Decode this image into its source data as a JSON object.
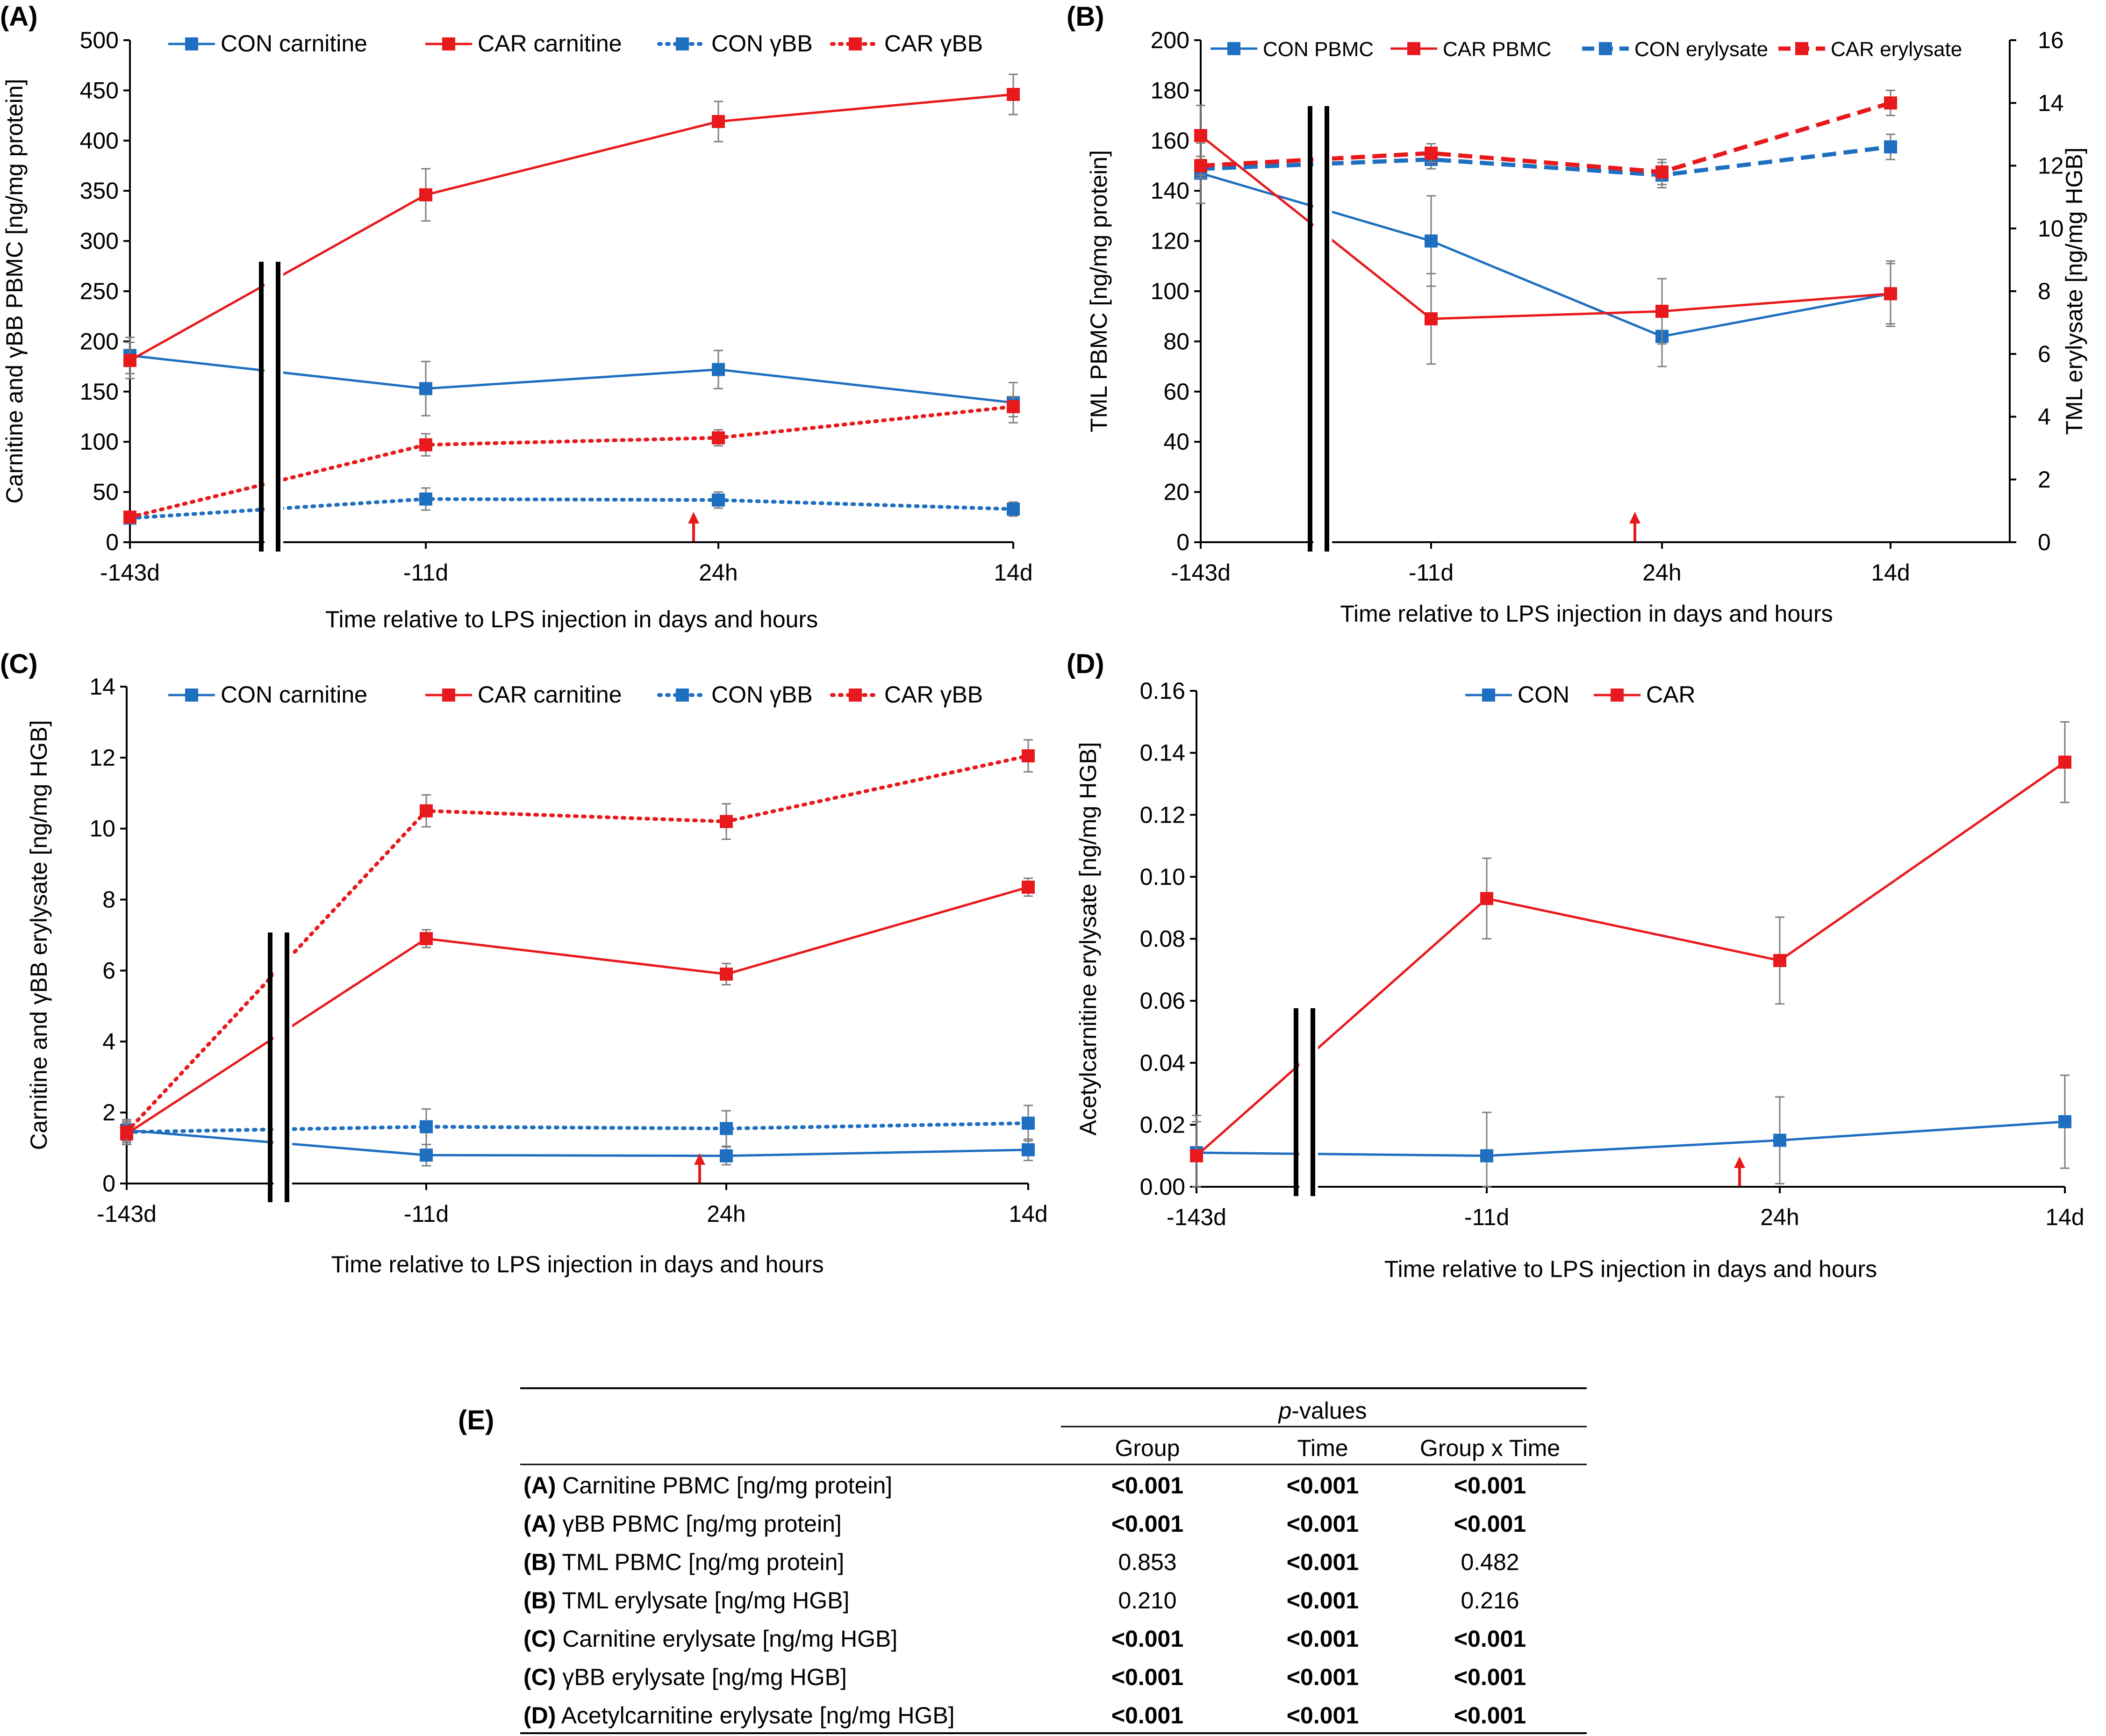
{
  "colors": {
    "con": "#1f6fc0",
    "car": "#e8191c",
    "axis": "#000000",
    "errbar": "#7f7f7f",
    "arrow": "#e8191c"
  },
  "chart_data": [
    {
      "id": "A",
      "panel_label": "(A)",
      "type": "line",
      "categories": [
        "-143d",
        "-11d",
        "24h",
        "14d"
      ],
      "break_between": [
        0,
        1
      ],
      "xlabel": "Time relative to LPS injection in days and hours",
      "ylabel": "Carnitine and γBB PBMC [ng/mg protein]",
      "ylim": [
        0,
        500
      ],
      "yticks": [
        "0",
        "50",
        "100",
        "150",
        "200",
        "250",
        "300",
        "350",
        "400",
        "450",
        "500"
      ],
      "legend": "top",
      "lps_arrow_category": 2,
      "series": [
        {
          "name": "CON carnitine",
          "group": "con",
          "style": "solid",
          "values": [
            186,
            153,
            172,
            139
          ],
          "errors": [
            18,
            27,
            19,
            20
          ]
        },
        {
          "name": "CAR carnitine",
          "group": "car",
          "style": "solid",
          "values": [
            181,
            346,
            419,
            446
          ],
          "errors": [
            18,
            26,
            20,
            20
          ]
        },
        {
          "name": "CON γBB",
          "group": "con",
          "style": "dotted",
          "values": [
            24,
            43,
            42,
            33
          ],
          "errors": [
            5,
            11,
            8,
            7
          ]
        },
        {
          "name": "CAR γBB",
          "group": "car",
          "style": "dotted",
          "values": [
            25,
            97,
            104,
            135
          ],
          "errors": [
            4,
            11,
            8,
            10
          ]
        }
      ]
    },
    {
      "id": "B",
      "panel_label": "(B)",
      "type": "line",
      "categories": [
        "-143d",
        "-11d",
        "24h",
        "14d"
      ],
      "break_between": [
        0,
        1
      ],
      "xlabel": "Time relative to LPS injection in days and hours",
      "ylabel": "TML PBMC [ng/mg protein]",
      "ylabel_right": "TML erylysate [ng/mg HGB]",
      "ylim": [
        0,
        200
      ],
      "yticks": [
        "0",
        "20",
        "40",
        "60",
        "80",
        "100",
        "120",
        "140",
        "160",
        "180",
        "200"
      ],
      "ylim_right": [
        0,
        16
      ],
      "yticks_right": [
        "0",
        "2",
        "4",
        "6",
        "8",
        "10",
        "12",
        "14",
        "16"
      ],
      "legend": "top",
      "lps_arrow_category": 2,
      "series": [
        {
          "name": "CON PBMC",
          "group": "con",
          "style": "solid",
          "axis": "left",
          "values": [
            147,
            120,
            82,
            99
          ],
          "errors": [
            12,
            18,
            12,
            13
          ]
        },
        {
          "name": "CAR PBMC",
          "group": "car",
          "style": "solid",
          "axis": "left",
          "values": [
            162,
            89,
            92,
            99
          ],
          "errors": [
            12,
            18,
            13,
            12
          ]
        },
        {
          "name": "CON erylysate",
          "group": "con",
          "style": "dashed",
          "axis": "right",
          "values": [
            11.9,
            12.2,
            11.7,
            12.6
          ],
          "errors": [
            0.3,
            0.3,
            0.4,
            0.4
          ]
        },
        {
          "name": "CAR erylysate",
          "group": "car",
          "style": "dashed",
          "axis": "right",
          "values": [
            12.0,
            12.4,
            11.8,
            14.0
          ],
          "errors": [
            0.3,
            0.3,
            0.4,
            0.4
          ]
        }
      ]
    },
    {
      "id": "C",
      "panel_label": "(C)",
      "type": "line",
      "categories": [
        "-143d",
        "-11d",
        "24h",
        "14d"
      ],
      "break_between": [
        0,
        1
      ],
      "xlabel": "Time relative to LPS injection in days and hours",
      "ylabel": "Carnitine and γBB erylysate [ng/mg HGB]",
      "ylim": [
        0,
        14
      ],
      "yticks": [
        "0",
        "2",
        "4",
        "6",
        "8",
        "10",
        "12",
        "14"
      ],
      "legend": "top",
      "lps_arrow_category": 2,
      "series": [
        {
          "name": "CON carnitine",
          "group": "con",
          "style": "solid",
          "values": [
            1.5,
            0.8,
            0.78,
            0.95
          ],
          "errors": [
            0.3,
            0.3,
            0.25,
            0.3
          ]
        },
        {
          "name": "CAR carnitine",
          "group": "car",
          "style": "solid",
          "values": [
            1.4,
            6.9,
            5.9,
            8.35
          ],
          "errors": [
            0.3,
            0.25,
            0.3,
            0.25
          ]
        },
        {
          "name": "CON γBB",
          "group": "con",
          "style": "dotted",
          "values": [
            1.45,
            1.6,
            1.55,
            1.7
          ],
          "errors": [
            0.3,
            0.5,
            0.5,
            0.5
          ]
        },
        {
          "name": "CAR γBB",
          "group": "car",
          "style": "dotted",
          "values": [
            1.45,
            10.5,
            10.2,
            12.05
          ],
          "errors": [
            0.3,
            0.45,
            0.5,
            0.45
          ]
        }
      ]
    },
    {
      "id": "D",
      "panel_label": "(D)",
      "type": "line",
      "categories": [
        "-143d",
        "-11d",
        "24h",
        "14d"
      ],
      "break_between": [
        0,
        1
      ],
      "xlabel": "Time relative to LPS injection in days and hours",
      "ylabel": "Acetylcarnitine erylysate [ng/mg HGB]",
      "ylim": [
        0,
        0.16
      ],
      "yticks": [
        "0.00",
        "0.02",
        "0.04",
        "0.06",
        "0.08",
        "0.10",
        "0.12",
        "0.14",
        "0.16"
      ],
      "legend": "top",
      "lps_arrow_category": 2,
      "series": [
        {
          "name": "CON",
          "group": "con",
          "style": "solid",
          "values": [
            0.011,
            0.01,
            0.015,
            0.021
          ],
          "errors": [
            0.012,
            0.014,
            0.014,
            0.015
          ]
        },
        {
          "name": "CAR",
          "group": "car",
          "style": "solid",
          "values": [
            0.01,
            0.093,
            0.073,
            0.137
          ],
          "errors": [
            0.011,
            0.013,
            0.014,
            0.013
          ]
        }
      ]
    },
    {
      "id": "E",
      "panel_label": "(E)",
      "type": "table",
      "spanner": "-values",
      "spanner_italic": "p",
      "columns": [
        "Group",
        "Time",
        "Group x Time"
      ],
      "rows": [
        {
          "tag": "(A)",
          "label": "Carnitine PBMC [ng/mg protein]",
          "cells": [
            {
              "v": "<0.001",
              "bold": true
            },
            {
              "v": "<0.001",
              "bold": true
            },
            {
              "v": "<0.001",
              "bold": true
            }
          ]
        },
        {
          "tag": "(A)",
          "label": "γBB PBMC [ng/mg protein]",
          "cells": [
            {
              "v": "<0.001",
              "bold": true
            },
            {
              "v": "<0.001",
              "bold": true
            },
            {
              "v": "<0.001",
              "bold": true
            }
          ]
        },
        {
          "tag": "(B)",
          "label": "TML PBMC [ng/mg protein]",
          "cells": [
            {
              "v": "0.853",
              "bold": false
            },
            {
              "v": "<0.001",
              "bold": true
            },
            {
              "v": "0.482",
              "bold": false
            }
          ]
        },
        {
          "tag": "(B)",
          "label": "TML erylysate [ng/mg HGB]",
          "cells": [
            {
              "v": "0.210",
              "bold": false
            },
            {
              "v": "<0.001",
              "bold": true
            },
            {
              "v": "0.216",
              "bold": false
            }
          ]
        },
        {
          "tag": "(C)",
          "label": "Carnitine erylysate [ng/mg HGB]",
          "cells": [
            {
              "v": "<0.001",
              "bold": true
            },
            {
              "v": "<0.001",
              "bold": true
            },
            {
              "v": "<0.001",
              "bold": true
            }
          ]
        },
        {
          "tag": "(C)",
          "label": "γBB erylysate [ng/mg HGB]",
          "cells": [
            {
              "v": "<0.001",
              "bold": true
            },
            {
              "v": "<0.001",
              "bold": true
            },
            {
              "v": "<0.001",
              "bold": true
            }
          ]
        },
        {
          "tag": "(D)",
          "label": "Acetylcarnitine erylysate [ng/mg HGB]",
          "cells": [
            {
              "v": "<0.001",
              "bold": true
            },
            {
              "v": "<0.001",
              "bold": true
            },
            {
              "v": "<0.001",
              "bold": true
            }
          ]
        }
      ]
    }
  ]
}
